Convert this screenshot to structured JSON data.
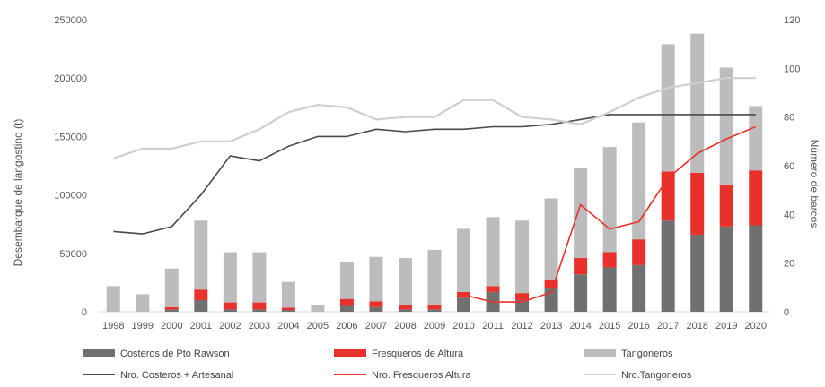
{
  "chart_data": {
    "type": "bar",
    "title": "",
    "categories": [
      "1998",
      "1999",
      "2000",
      "2001",
      "2002",
      "2003",
      "2004",
      "2005",
      "2006",
      "2007",
      "2008",
      "2009",
      "2010",
      "2011",
      "2012",
      "2013",
      "2014",
      "2015",
      "2016",
      "2017",
      "2018",
      "2019",
      "2020"
    ],
    "left_axis": {
      "label": "Desembarque de langostino (t)",
      "ylim": [
        0,
        250000
      ],
      "ticks": [
        "0",
        "50000",
        "100000",
        "150000",
        "200000",
        "250000"
      ]
    },
    "right_axis": {
      "label": "Número de barcos",
      "ylim": [
        0,
        120
      ],
      "ticks": [
        "0",
        "20",
        "40",
        "60",
        "80",
        "100",
        "120"
      ]
    },
    "bar_series": [
      {
        "name": "Costeros de Pto Rawson",
        "color": "#707070",
        "values": [
          0,
          0,
          2000,
          10000,
          2000,
          2000,
          1500,
          0,
          5000,
          4000,
          2000,
          2000,
          12000,
          17000,
          10000,
          20000,
          32000,
          38000,
          40000,
          78000,
          66000,
          73000,
          74000
        ]
      },
      {
        "name": "Fresqueros de Altura",
        "color": "#e8312a",
        "values": [
          0,
          0,
          2000,
          9000,
          6000,
          6000,
          2000,
          0,
          6000,
          5000,
          4000,
          4000,
          5000,
          5000,
          6000,
          7000,
          14000,
          13000,
          22000,
          42000,
          53000,
          36000,
          47000
        ]
      },
      {
        "name": "Tangoneros",
        "color": "#bcbcbc",
        "values": [
          22000,
          15000,
          33000,
          59000,
          43000,
          43000,
          22000,
          6000,
          32000,
          38000,
          40000,
          47000,
          54000,
          59000,
          62000,
          70000,
          77000,
          90000,
          100000,
          109000,
          119000,
          100000,
          55000
        ]
      }
    ],
    "line_series": [
      {
        "name": "Nro. Costeros + Artesanal",
        "color": "#4a4a4a",
        "axis": "right",
        "values": [
          33,
          32,
          35,
          48,
          64,
          62,
          68,
          72,
          72,
          75,
          74,
          75,
          75,
          76,
          76,
          77,
          79,
          81,
          81,
          81,
          81,
          81,
          81
        ]
      },
      {
        "name": "Nro. Fresqueros Altura",
        "color": "#e8312a",
        "axis": "right",
        "values": [
          null,
          null,
          null,
          null,
          null,
          null,
          null,
          null,
          null,
          null,
          null,
          null,
          7,
          4,
          4,
          8,
          44,
          34,
          37,
          55,
          65,
          71,
          76
        ]
      },
      {
        "name": "Nro.Tangoneros",
        "color": "#cfcfcf",
        "axis": "right",
        "values": [
          63,
          67,
          67,
          70,
          70,
          75,
          82,
          85,
          84,
          79,
          80,
          80,
          87,
          87,
          80,
          79,
          77,
          82,
          88,
          92,
          94,
          96,
          96
        ]
      }
    ],
    "legend_position": "bottom",
    "grid": false
  }
}
